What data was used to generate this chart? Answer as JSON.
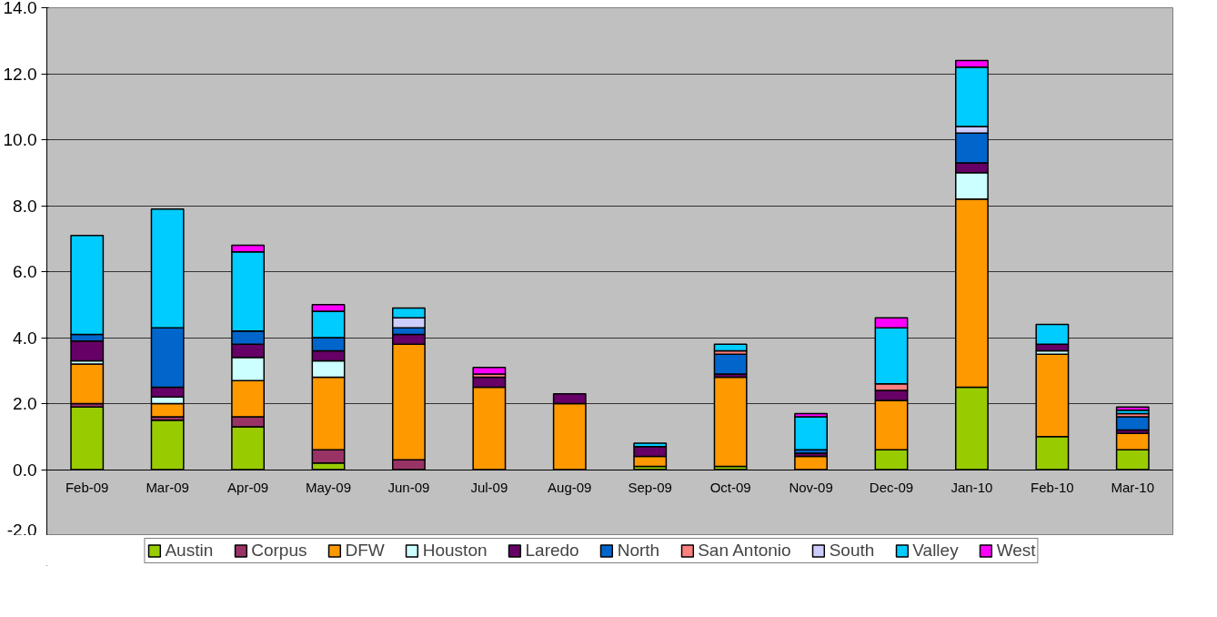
{
  "chart_data": {
    "type": "bar",
    "stacked": true,
    "categories": [
      "Feb-09",
      "Mar-09",
      "Apr-09",
      "May-09",
      "Jun-09",
      "Jul-09",
      "Aug-09",
      "Sep-09",
      "Oct-09",
      "Nov-09",
      "Dec-09",
      "Jan-10",
      "Feb-10",
      "Mar-10"
    ],
    "series": [
      {
        "name": "Austin",
        "color": "#99cc00",
        "values": [
          1.9,
          1.5,
          1.3,
          0.2,
          0,
          0,
          0,
          0.1,
          0.1,
          0,
          0.6,
          2.5,
          1.0,
          0.6
        ]
      },
      {
        "name": "Corpus",
        "color": "#993366",
        "values": [
          0.1,
          0.1,
          0.3,
          0.4,
          0.3,
          0,
          0,
          0,
          0,
          0,
          0,
          0,
          0,
          0
        ]
      },
      {
        "name": "DFW",
        "color": "#ff9900",
        "values": [
          1.2,
          0.4,
          1.1,
          2.2,
          3.5,
          2.5,
          2.0,
          0.3,
          2.7,
          0.4,
          1.5,
          5.7,
          2.5,
          0.5
        ]
      },
      {
        "name": "Houston",
        "color": "#ccffff",
        "values": [
          0.1,
          0.2,
          0.7,
          0.5,
          0,
          0,
          0,
          0,
          0,
          0,
          0,
          0.8,
          0.1,
          0
        ]
      },
      {
        "name": "Laredo",
        "color": "#660066",
        "values": [
          0.6,
          0.3,
          0.4,
          0.3,
          0.3,
          0.3,
          0.3,
          0.3,
          0.1,
          0.1,
          0.3,
          0.3,
          0.2,
          0.1
        ]
      },
      {
        "name": "North",
        "color": "#0066cc",
        "values": [
          0.2,
          1.8,
          0.4,
          0.4,
          0.2,
          0,
          0,
          0,
          0.6,
          0.1,
          0,
          0.9,
          0,
          0.4
        ]
      },
      {
        "name": "San Antonio",
        "color": "#ff8080",
        "values": [
          0,
          0,
          0,
          0,
          0,
          0.1,
          0,
          0,
          0.1,
          0,
          0.2,
          0,
          0,
          0.1
        ]
      },
      {
        "name": "South",
        "color": "#ccccff",
        "values": [
          0,
          0,
          0,
          0,
          0.3,
          0,
          0,
          0,
          0,
          0,
          0,
          0.2,
          0,
          0
        ]
      },
      {
        "name": "Valley",
        "color": "#00ccff",
        "values": [
          3.0,
          3.6,
          2.4,
          0.8,
          0.3,
          0,
          0,
          0.1,
          0.2,
          1.0,
          1.7,
          1.8,
          0.6,
          0.1
        ]
      },
      {
        "name": "West",
        "color": "#ff00ff",
        "values": [
          0,
          0,
          0.2,
          0.2,
          0,
          0.2,
          0,
          0,
          0,
          0.1,
          0.3,
          0.2,
          0,
          0.1
        ]
      }
    ],
    "ylim": [
      -2,
      14
    ],
    "yticks": [
      {
        "value": -2,
        "label": "-2.0"
      },
      {
        "value": 0,
        "label": "0.0"
      },
      {
        "value": 2,
        "label": "2.0"
      },
      {
        "value": 4,
        "label": "4.0"
      },
      {
        "value": 6,
        "label": "6.0"
      },
      {
        "value": 8,
        "label": "8.0"
      },
      {
        "value": 10,
        "label": "10.0"
      },
      {
        "value": 12,
        "label": "12.0"
      },
      {
        "value": 14,
        "label": "14.0"
      }
    ],
    "grid": "y",
    "legend": "bottom"
  }
}
